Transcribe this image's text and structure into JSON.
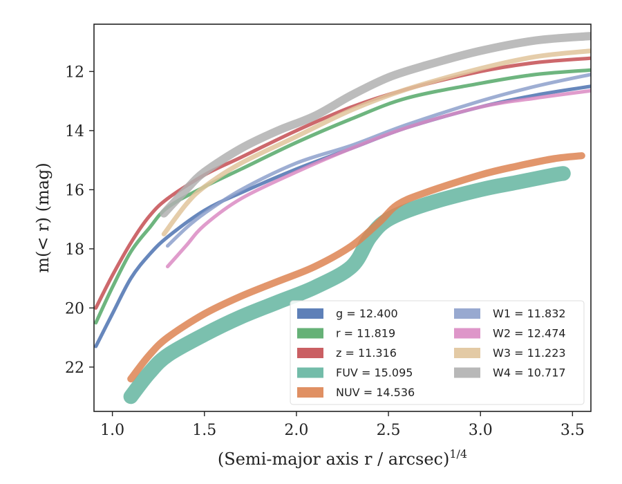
{
  "chart_data": {
    "type": "line",
    "title": "",
    "xlabel": "(Semi-major axis r / arcsec)",
    "xlabel_sup": "1/4",
    "ylabel": "m(< r) (mag)",
    "xlim": [
      0.9,
      3.6
    ],
    "ylim": [
      23.5,
      10.4
    ],
    "y_inverted": true,
    "grid": false,
    "legend_position": "lower right",
    "legend_columns": 2,
    "x_ticks": [
      1.0,
      1.5,
      2.0,
      2.5,
      3.0,
      3.5
    ],
    "x_tick_labels": [
      "1.0",
      "1.5",
      "2.0",
      "2.5",
      "3.0",
      "3.5"
    ],
    "y_ticks": [
      12,
      14,
      16,
      18,
      20,
      22
    ],
    "y_tick_labels": [
      "12",
      "14",
      "16",
      "18",
      "20",
      "22"
    ],
    "series": [
      {
        "name": "g = 12.400",
        "color": "#4c72b0",
        "band": 0.06,
        "x": [
          0.91,
          1.0,
          1.1,
          1.2,
          1.3,
          1.5,
          1.7,
          2.0,
          2.3,
          2.6,
          3.0,
          3.3,
          3.6
        ],
        "y": [
          21.3,
          20.2,
          19.0,
          18.2,
          17.6,
          16.7,
          16.1,
          15.3,
          14.6,
          13.9,
          13.2,
          12.8,
          12.5
        ]
      },
      {
        "name": "r = 11.819",
        "color": "#55a868",
        "band": 0.06,
        "x": [
          0.91,
          1.0,
          1.1,
          1.2,
          1.3,
          1.5,
          1.7,
          2.0,
          2.3,
          2.6,
          3.0,
          3.3,
          3.6
        ],
        "y": [
          20.5,
          19.3,
          18.1,
          17.3,
          16.6,
          15.9,
          15.3,
          14.4,
          13.6,
          12.9,
          12.4,
          12.1,
          11.95
        ]
      },
      {
        "name": "z = 11.316",
        "color": "#c44e52",
        "band": 0.06,
        "x": [
          0.91,
          1.0,
          1.1,
          1.2,
          1.3,
          1.5,
          1.7,
          2.0,
          2.3,
          2.6,
          3.0,
          3.3,
          3.6
        ],
        "y": [
          20.0,
          18.9,
          17.8,
          16.9,
          16.3,
          15.5,
          14.9,
          14.0,
          13.2,
          12.6,
          12.0,
          11.7,
          11.55
        ]
      },
      {
        "name": "FUV = 15.095",
        "color": "#64b5a0",
        "band": 0.25,
        "x": [
          1.1,
          1.2,
          1.3,
          1.5,
          1.7,
          1.9,
          2.1,
          2.3,
          2.4,
          2.5,
          2.7,
          3.0,
          3.2,
          3.4,
          3.45
        ],
        "y": [
          23.0,
          22.2,
          21.6,
          20.9,
          20.3,
          19.8,
          19.3,
          18.6,
          17.6,
          17.0,
          16.5,
          16.0,
          15.75,
          15.5,
          15.45
        ]
      },
      {
        "name": "NUV = 14.536",
        "color": "#dd8452",
        "band": 0.12,
        "x": [
          1.1,
          1.2,
          1.3,
          1.5,
          1.7,
          1.9,
          2.1,
          2.3,
          2.45,
          2.55,
          2.7,
          3.0,
          3.2,
          3.4,
          3.55
        ],
        "y": [
          22.4,
          21.6,
          21.0,
          20.2,
          19.6,
          19.1,
          18.6,
          17.9,
          17.1,
          16.5,
          16.1,
          15.5,
          15.2,
          14.95,
          14.85
        ]
      },
      {
        "name": "W1 = 11.832",
        "color": "#8da0cb",
        "band": 0.06,
        "x": [
          1.3,
          1.4,
          1.5,
          1.7,
          2.0,
          2.3,
          2.6,
          3.0,
          3.3,
          3.6
        ],
        "y": [
          17.9,
          17.3,
          16.8,
          16.0,
          15.1,
          14.5,
          13.8,
          13.0,
          12.5,
          12.1
        ]
      },
      {
        "name": "W2 = 12.474",
        "color": "#da8bc3",
        "band": 0.06,
        "x": [
          1.3,
          1.4,
          1.5,
          1.7,
          2.0,
          2.3,
          2.6,
          3.0,
          3.3,
          3.6
        ],
        "y": [
          18.6,
          17.9,
          17.2,
          16.3,
          15.4,
          14.6,
          13.9,
          13.2,
          12.9,
          12.65
        ]
      },
      {
        "name": "W3 = 11.223",
        "color": "#e0c49b",
        "band": 0.08,
        "x": [
          1.28,
          1.4,
          1.5,
          1.7,
          2.0,
          2.3,
          2.6,
          3.0,
          3.3,
          3.6
        ],
        "y": [
          17.5,
          16.5,
          15.9,
          15.1,
          14.2,
          13.3,
          12.6,
          11.9,
          11.5,
          11.3
        ]
      },
      {
        "name": "W4 = 10.717",
        "color": "#b0b0b0",
        "band": 0.14,
        "x": [
          1.28,
          1.4,
          1.5,
          1.7,
          1.9,
          2.1,
          2.3,
          2.5,
          2.7,
          3.0,
          3.3,
          3.6
        ],
        "y": [
          16.8,
          16.0,
          15.4,
          14.6,
          14.0,
          13.5,
          12.8,
          12.2,
          11.8,
          11.3,
          10.95,
          10.8
        ]
      }
    ]
  }
}
